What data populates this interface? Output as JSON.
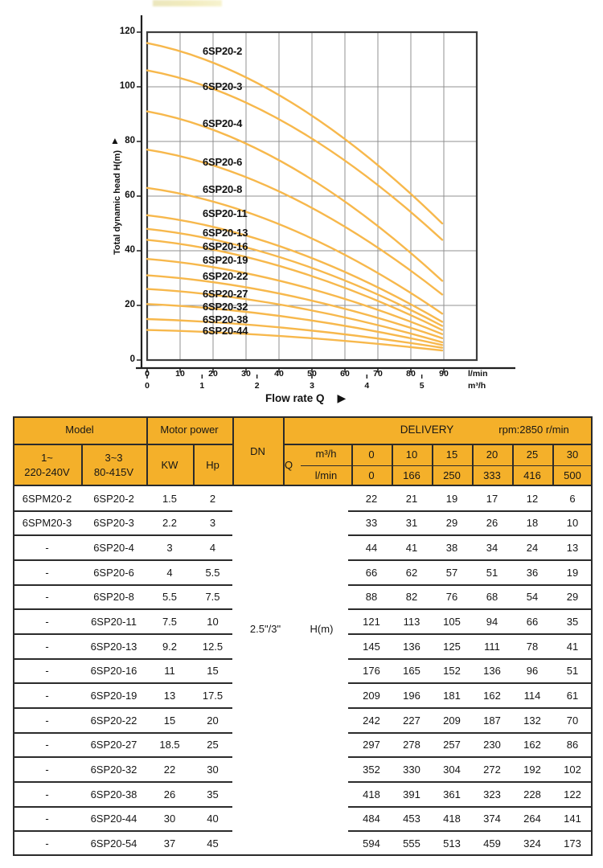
{
  "chart_data": {
    "type": "line",
    "xlabel": "Flow rate Q",
    "ylabel": "Total dynamic head H(m)",
    "x_axis": {
      "lmin_ticks": [
        0,
        10,
        20,
        30,
        40,
        50,
        60,
        70,
        80,
        90
      ],
      "lmin_unit": "l/min",
      "m3h_ticks": [
        0,
        1,
        2,
        3,
        4,
        5
      ],
      "m3h_unit": "m³/h"
    },
    "y_axis": {
      "ticks": [
        0,
        20,
        40,
        60,
        80,
        100,
        120
      ],
      "min": 0,
      "max": 120
    },
    "grid": true,
    "curve_color": "#F7B84C",
    "series": [
      {
        "name": "6SP20-2",
        "h0": 116,
        "h_end": 50,
        "label_h": 113
      },
      {
        "name": "6SP20-3",
        "h0": 106,
        "h_end": 44,
        "label_h": 100
      },
      {
        "name": "6SP20-4",
        "h0": 91,
        "h_end": 29,
        "label_h": 86.5
      },
      {
        "name": "6SP20-6",
        "h0": 77,
        "h_end": 24,
        "label_h": 72.5
      },
      {
        "name": "6SP20-8",
        "h0": 63,
        "h_end": 17,
        "label_h": 62.5
      },
      {
        "name": "6SP20-11",
        "h0": 53,
        "h_end": 14,
        "label_h": 53.5
      },
      {
        "name": "6SP20-13",
        "h0": 48,
        "h_end": 12.5,
        "label_h": 46.5
      },
      {
        "name": "6SP20-16",
        "h0": 44,
        "h_end": 11,
        "label_h": 41.5
      },
      {
        "name": "6SP20-19",
        "h0": 37,
        "h_end": 9.5,
        "label_h": 36.5
      },
      {
        "name": "6SP20-22",
        "h0": 31,
        "h_end": 8,
        "label_h": 30.5
      },
      {
        "name": "6SP20-27",
        "h0": 26,
        "h_end": 6.5,
        "label_h": 24
      },
      {
        "name": "6SP20-32",
        "h0": 20.5,
        "h_end": 5.5,
        "label_h": 19.5
      },
      {
        "name": "6SP20-38",
        "h0": 15,
        "h_end": 4.5,
        "label_h": 14.8
      },
      {
        "name": "6SP20-44",
        "h0": 11,
        "h_end": 3.5,
        "label_h": 10.5
      }
    ]
  },
  "table": {
    "accent": "#F4B02A",
    "line_color": "#2b2b2b",
    "header": {
      "model": "Model",
      "motor_power": "Motor power",
      "dn": "DN",
      "delivery": "DELIVERY",
      "rpm": "rpm:2850 r/min",
      "phase1": "1~\n220-240V",
      "phase3": "3~3\n80-415V",
      "kw": "KW",
      "hp": "Hp",
      "q": "Q",
      "m3h": "m³/h",
      "lmin": "l/min",
      "m3h_values": [
        "0",
        "10",
        "15",
        "20",
        "25",
        "30"
      ],
      "lmin_values": [
        "0",
        "166",
        "250",
        "333",
        "416",
        "500"
      ]
    },
    "dn_value": "2.5\"/3\"",
    "h_label": "H(m)",
    "rows": [
      {
        "model1": "6SPM20-2",
        "model2": "6SP20-2",
        "kw": "1.5",
        "hp": "2",
        "h": [
          "22",
          "21",
          "19",
          "17",
          "12",
          "6"
        ]
      },
      {
        "model1": "6SPM20-3",
        "model2": "6SP20-3",
        "kw": "2.2",
        "hp": "3",
        "h": [
          "33",
          "31",
          "29",
          "26",
          "18",
          "10"
        ]
      },
      {
        "model1": "-",
        "model2": "6SP20-4",
        "kw": "3",
        "hp": "4",
        "h": [
          "44",
          "41",
          "38",
          "34",
          "24",
          "13"
        ]
      },
      {
        "model1": "-",
        "model2": "6SP20-6",
        "kw": "4",
        "hp": "5.5",
        "h": [
          "66",
          "62",
          "57",
          "51",
          "36",
          "19"
        ]
      },
      {
        "model1": "-",
        "model2": "6SP20-8",
        "kw": "5.5",
        "hp": "7.5",
        "h": [
          "88",
          "82",
          "76",
          "68",
          "54",
          "29"
        ]
      },
      {
        "model1": "-",
        "model2": "6SP20-11",
        "kw": "7.5",
        "hp": "10",
        "h": [
          "121",
          "113",
          "105",
          "94",
          "66",
          "35"
        ]
      },
      {
        "model1": "-",
        "model2": "6SP20-13",
        "kw": "9.2",
        "hp": "12.5",
        "h": [
          "145",
          "136",
          "125",
          "111",
          "78",
          "41"
        ]
      },
      {
        "model1": "-",
        "model2": "6SP20-16",
        "kw": "11",
        "hp": "15",
        "h": [
          "176",
          "165",
          "152",
          "136",
          "96",
          "51"
        ]
      },
      {
        "model1": "-",
        "model2": "6SP20-19",
        "kw": "13",
        "hp": "17.5",
        "h": [
          "209",
          "196",
          "181",
          "162",
          "114",
          "61"
        ]
      },
      {
        "model1": "-",
        "model2": "6SP20-22",
        "kw": "15",
        "hp": "20",
        "h": [
          "242",
          "227",
          "209",
          "187",
          "132",
          "70"
        ]
      },
      {
        "model1": "-",
        "model2": "6SP20-27",
        "kw": "18.5",
        "hp": "25",
        "h": [
          "297",
          "278",
          "257",
          "230",
          "162",
          "86"
        ]
      },
      {
        "model1": "-",
        "model2": "6SP20-32",
        "kw": "22",
        "hp": "30",
        "h": [
          "352",
          "330",
          "304",
          "272",
          "192",
          "102"
        ]
      },
      {
        "model1": "-",
        "model2": "6SP20-38",
        "kw": "26",
        "hp": "35",
        "h": [
          "418",
          "391",
          "361",
          "323",
          "228",
          "122"
        ]
      },
      {
        "model1": "-",
        "model2": "6SP20-44",
        "kw": "30",
        "hp": "40",
        "h": [
          "484",
          "453",
          "418",
          "374",
          "264",
          "141"
        ]
      },
      {
        "model1": "-",
        "model2": "6SP20-54",
        "kw": "37",
        "hp": "45",
        "h": [
          "594",
          "555",
          "513",
          "459",
          "324",
          "173"
        ]
      }
    ]
  }
}
